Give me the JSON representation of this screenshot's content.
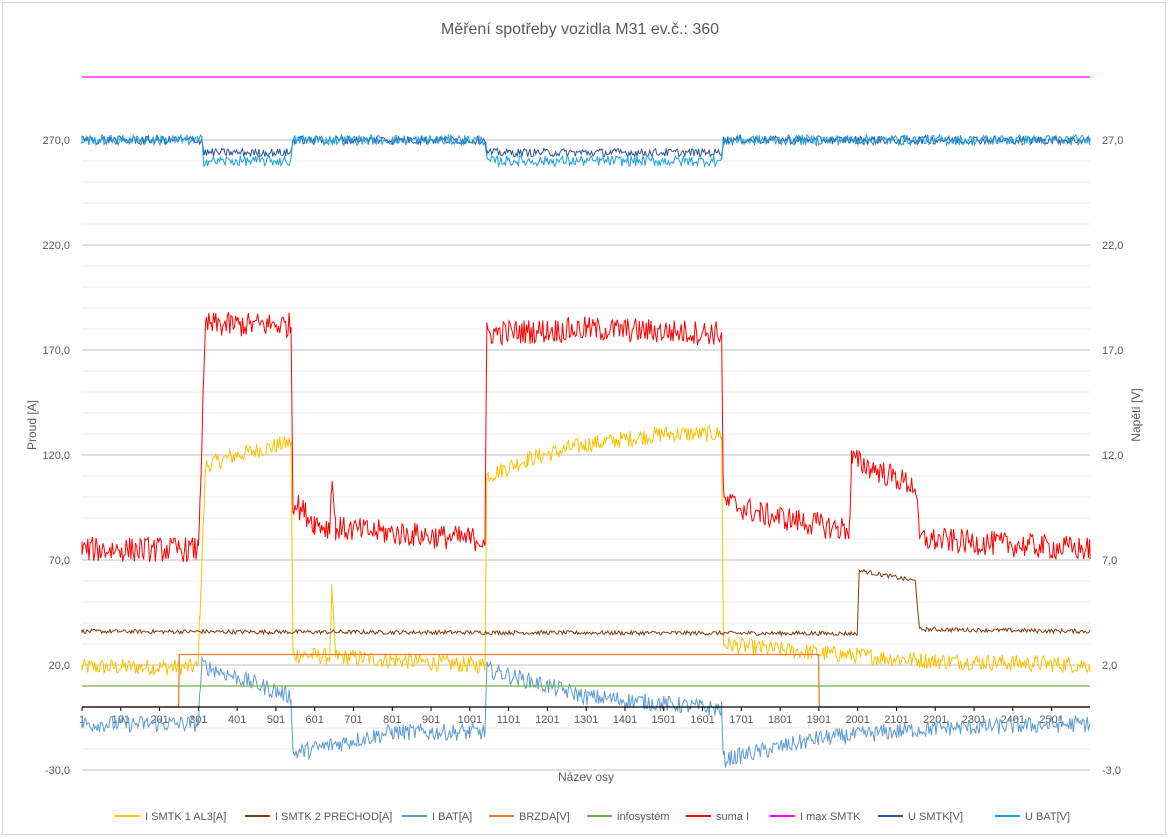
{
  "chart_data": {
    "type": "line",
    "title": "Měření spotřeby vozidla M31 ev.č.: 360",
    "xlabel": "Název osy",
    "ylabel_left": "Proud [A]",
    "ylabel_right": "Napětí [V]",
    "y_left_lim": [
      -30,
      300
    ],
    "y_left_ticks": [
      "-30,0",
      "20,0",
      "70,0",
      "120,0",
      "170,0",
      "220,0",
      "270,0"
    ],
    "y_right_lim": [
      -3,
      30
    ],
    "y_right_ticks": [
      "-3,0",
      "2,0",
      "7,0",
      "12,0",
      "17,0",
      "22,0",
      "27,0"
    ],
    "x_lim": [
      1,
      2600
    ],
    "x_ticks": [
      "1",
      "101",
      "201",
      "301",
      "401",
      "501",
      "601",
      "701",
      "801",
      "901",
      "1001",
      "1101",
      "1201",
      "1301",
      "1401",
      "1501",
      "1601",
      "1701",
      "1801",
      "1901",
      "2001",
      "2101",
      "2201",
      "2301",
      "2401",
      "2501"
    ],
    "grid": true,
    "legend_position": "bottom",
    "series": [
      {
        "name": "I SMTK 1 AL3[A]",
        "axis": "left",
        "color": "#FFC000",
        "noise": 4,
        "points": [
          [
            1,
            19
          ],
          [
            300,
            19
          ],
          [
            305,
            45
          ],
          [
            320,
            115
          ],
          [
            400,
            120
          ],
          [
            540,
            126
          ],
          [
            545,
            25
          ],
          [
            640,
            24
          ],
          [
            645,
            55
          ],
          [
            655,
            24
          ],
          [
            1000,
            20
          ],
          [
            1040,
            20
          ],
          [
            1045,
            110
          ],
          [
            1150,
            118
          ],
          [
            1300,
            125
          ],
          [
            1500,
            130
          ],
          [
            1650,
            130
          ],
          [
            1655,
            30
          ],
          [
            1750,
            28
          ],
          [
            1950,
            25
          ],
          [
            2200,
            22
          ],
          [
            2600,
            20
          ]
        ]
      },
      {
        "name": "I SMTK 2 PRECHOD[A]",
        "axis": "left",
        "color": "#843C0C",
        "noise": 1,
        "points": [
          [
            1,
            36
          ],
          [
            2000,
            35
          ],
          [
            2005,
            65
          ],
          [
            2150,
            60
          ],
          [
            2160,
            37
          ],
          [
            2600,
            36
          ]
        ]
      },
      {
        "name": "I BAT[A]",
        "axis": "left",
        "color": "#5B9BD5",
        "noise": 4,
        "points": [
          [
            1,
            -8
          ],
          [
            300,
            -8
          ],
          [
            310,
            20
          ],
          [
            540,
            5
          ],
          [
            545,
            -22
          ],
          [
            800,
            -12
          ],
          [
            1000,
            -12
          ],
          [
            1040,
            -12
          ],
          [
            1045,
            18
          ],
          [
            1300,
            5
          ],
          [
            1650,
            -1
          ],
          [
            1655,
            -25
          ],
          [
            1900,
            -15
          ],
          [
            2200,
            -10
          ],
          [
            2600,
            -8
          ]
        ]
      },
      {
        "name": "BRZDA[V]",
        "axis": "right",
        "color": "#ED7D31",
        "noise": 0,
        "points": [
          [
            1,
            0
          ],
          [
            250,
            0
          ],
          [
            252,
            2.5
          ],
          [
            1900,
            2.5
          ],
          [
            1902,
            0
          ],
          [
            2600,
            0
          ]
        ]
      },
      {
        "name": "infosystém",
        "axis": "right",
        "color": "#70AD47",
        "noise": 0,
        "points": [
          [
            1,
            1
          ],
          [
            2600,
            1
          ]
        ]
      },
      {
        "name": "suma I",
        "axis": "left",
        "color": "#FF0000",
        "noise": 6,
        "points": [
          [
            1,
            75
          ],
          [
            300,
            75
          ],
          [
            305,
            98
          ],
          [
            320,
            182
          ],
          [
            540,
            182
          ],
          [
            545,
            98
          ],
          [
            600,
            88
          ],
          [
            640,
            85
          ],
          [
            645,
            110
          ],
          [
            655,
            85
          ],
          [
            1000,
            80
          ],
          [
            1040,
            80
          ],
          [
            1045,
            178
          ],
          [
            1300,
            180
          ],
          [
            1650,
            178
          ],
          [
            1655,
            98
          ],
          [
            1750,
            92
          ],
          [
            1950,
            85
          ],
          [
            1980,
            85
          ],
          [
            1985,
            118
          ],
          [
            2150,
            105
          ],
          [
            2160,
            80
          ],
          [
            2600,
            75
          ]
        ]
      },
      {
        "name": "I max SMTK",
        "axis": "left",
        "color": "#FF00FF",
        "noise": 0,
        "points": [
          [
            1,
            300
          ],
          [
            2600,
            300
          ]
        ]
      },
      {
        "name": "U SMTK[V]",
        "axis": "right",
        "color": "#2F5597",
        "noise": 0.2,
        "points": [
          [
            1,
            27
          ],
          [
            310,
            27
          ],
          [
            315,
            26.4
          ],
          [
            540,
            26.4
          ],
          [
            545,
            27
          ],
          [
            1040,
            27
          ],
          [
            1045,
            26.4
          ],
          [
            1650,
            26.4
          ],
          [
            1655,
            27
          ],
          [
            2600,
            27
          ]
        ]
      },
      {
        "name": "U BAT[V]",
        "axis": "right",
        "color": "#1BA1E2",
        "noise": 0.25,
        "points": [
          [
            1,
            27
          ],
          [
            310,
            27
          ],
          [
            315,
            26
          ],
          [
            540,
            26
          ],
          [
            545,
            27
          ],
          [
            1040,
            27
          ],
          [
            1045,
            26
          ],
          [
            1650,
            26
          ],
          [
            1655,
            27
          ],
          [
            2600,
            27
          ]
        ]
      }
    ]
  }
}
